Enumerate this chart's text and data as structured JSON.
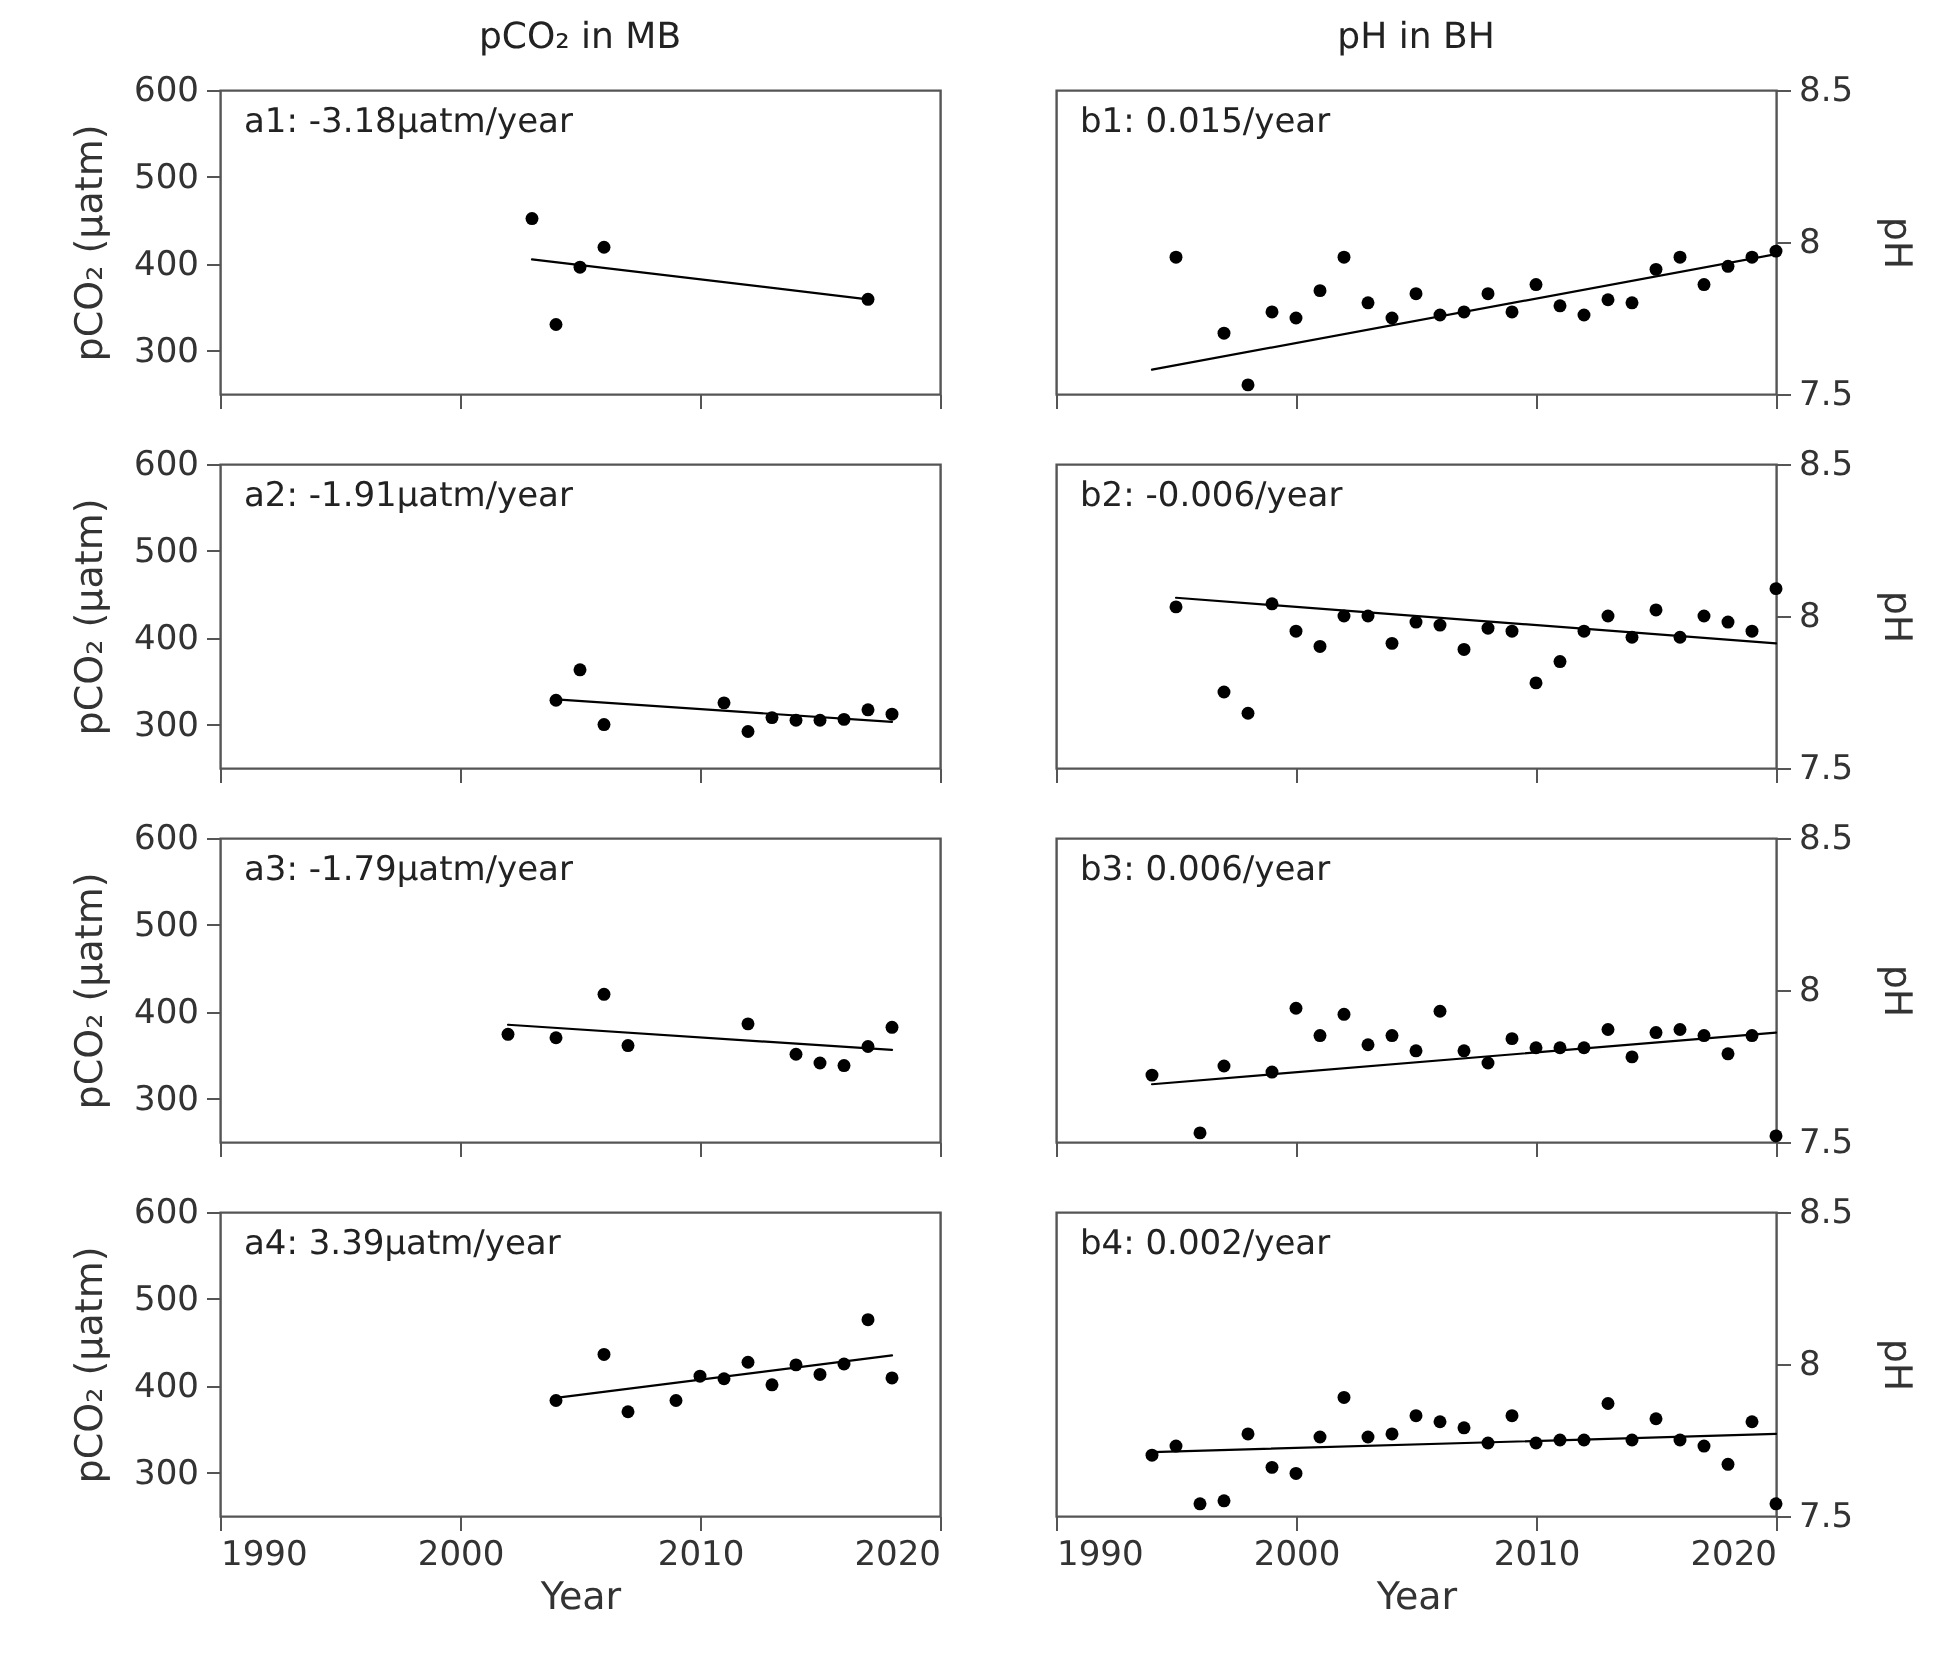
{
  "chart_data": [
    {
      "type": "scatter",
      "title": "pCO₂ in MB",
      "ylabel": "pCO₂ (μatm)",
      "xlim": [
        1990,
        2020
      ],
      "xticks": [
        1990,
        2000,
        2010,
        2020
      ],
      "ylim": [
        250,
        600
      ],
      "yticks": [
        300,
        400,
        500,
        600
      ],
      "tick_labels": "y",
      "annotations": [
        "a1: -3.18μatm/year"
      ],
      "series": [
        {
          "marker": "circle",
          "color": "#000000",
          "x": [
            2003,
            2004,
            2005,
            2006,
            2017
          ],
          "values": [
            452,
            330,
            396,
            419,
            359
          ]
        },
        {
          "type": "line",
          "color": "#000000",
          "x": [
            2003,
            2017
          ],
          "values": [
            405,
            359
          ]
        }
      ]
    },
    {
      "type": "scatter",
      "title": "pH in BH",
      "y2label": "pH",
      "xlim": [
        1990,
        2020
      ],
      "xticks": [
        1990,
        2000,
        2010,
        2020
      ],
      "y2lim": [
        7.5,
        8.5
      ],
      "y2ticks": [
        7.5,
        8,
        8.5
      ],
      "tick_labels": "y",
      "annotations": [
        "b1: 0.015/year"
      ],
      "series": [
        {
          "marker": "circle",
          "axis": "y2",
          "color": "#000000",
          "x": [
            1995,
            1997,
            1998,
            1999,
            2000,
            2001,
            2002,
            2003,
            2004,
            2005,
            2006,
            2007,
            2008,
            2009,
            2010,
            2011,
            2012,
            2013,
            2014,
            2015,
            2016,
            2017,
            2018,
            2019,
            2020
          ],
          "values": [
            7.95,
            7.7,
            7.53,
            7.77,
            7.75,
            7.84,
            7.95,
            7.8,
            7.75,
            7.83,
            7.76,
            7.77,
            7.83,
            7.77,
            7.86,
            7.79,
            7.76,
            7.81,
            7.8,
            7.91,
            7.95,
            7.86,
            7.92,
            7.95,
            7.97
          ]
        },
        {
          "type": "line",
          "axis": "y2",
          "color": "#000000",
          "x": [
            1994,
            2020
          ],
          "values": [
            7.58,
            7.96
          ]
        }
      ]
    },
    {
      "type": "scatter",
      "ylabel": "pCO₂ (μatm)",
      "xlim": [
        1990,
        2020
      ],
      "xticks": [
        1990,
        2000,
        2010,
        2020
      ],
      "ylim": [
        250,
        600
      ],
      "yticks": [
        300,
        400,
        500,
        600
      ],
      "tick_labels": "y",
      "annotations": [
        "a2: -1.91μatm/year"
      ],
      "series": [
        {
          "marker": "circle",
          "color": "#000000",
          "x": [
            2004,
            2005,
            2006,
            2011,
            2012,
            2013,
            2014,
            2015,
            2016,
            2017,
            2018
          ],
          "values": [
            328,
            363,
            300,
            325,
            292,
            308,
            305,
            305,
            306,
            317,
            312
          ]
        },
        {
          "type": "line",
          "color": "#000000",
          "x": [
            2004,
            2018
          ],
          "values": [
            329,
            303
          ]
        }
      ]
    },
    {
      "type": "scatter",
      "y2label": "pH",
      "xlim": [
        1990,
        2020
      ],
      "xticks": [
        1990,
        2000,
        2010,
        2020
      ],
      "y2lim": [
        7.5,
        8.5
      ],
      "y2ticks": [
        7.5,
        8,
        8.5
      ],
      "tick_labels": "y",
      "annotations": [
        "b2: -0.006/year"
      ],
      "series": [
        {
          "marker": "circle",
          "axis": "y2",
          "color": "#000000",
          "x": [
            1995,
            1997,
            1998,
            1999,
            2000,
            2001,
            2002,
            2003,
            2004,
            2005,
            2006,
            2007,
            2008,
            2009,
            2010,
            2011,
            2012,
            2013,
            2014,
            2015,
            2016,
            2017,
            2018,
            2019,
            2020
          ],
          "values": [
            8.03,
            7.75,
            7.68,
            8.04,
            7.95,
            7.9,
            8.0,
            8.0,
            7.91,
            7.98,
            7.97,
            7.89,
            7.96,
            7.95,
            7.78,
            7.85,
            7.95,
            8.0,
            7.93,
            8.02,
            7.93,
            8.0,
            7.98,
            7.95,
            8.09
          ]
        },
        {
          "type": "line",
          "axis": "y2",
          "color": "#000000",
          "x": [
            1995,
            2020
          ],
          "values": [
            8.06,
            7.91
          ]
        }
      ]
    },
    {
      "type": "scatter",
      "ylabel": "pCO₂ (μatm)",
      "xlim": [
        1990,
        2020
      ],
      "xticks": [
        1990,
        2000,
        2010,
        2020
      ],
      "ylim": [
        250,
        600
      ],
      "yticks": [
        300,
        400,
        500,
        600
      ],
      "tick_labels": "y",
      "annotations": [
        "a3: -1.79μatm/year"
      ],
      "series": [
        {
          "marker": "circle",
          "color": "#000000",
          "x": [
            2002,
            2004,
            2006,
            2007,
            2012,
            2014,
            2015,
            2016,
            2017,
            2018
          ],
          "values": [
            374,
            370,
            420,
            361,
            386,
            351,
            341,
            338,
            360,
            382
          ]
        },
        {
          "type": "line",
          "color": "#000000",
          "x": [
            2002,
            2018
          ],
          "values": [
            385,
            356
          ]
        }
      ]
    },
    {
      "type": "scatter",
      "y2label": "pH",
      "xlim": [
        1990,
        2020
      ],
      "xticks": [
        1990,
        2000,
        2010,
        2020
      ],
      "y2lim": [
        7.5,
        8.5
      ],
      "y2ticks": [
        7.5,
        8,
        8.5
      ],
      "tick_labels": "y",
      "annotations": [
        "b3: 0.006/year"
      ],
      "series": [
        {
          "marker": "circle",
          "axis": "y2",
          "color": "#000000",
          "x": [
            1994,
            1996,
            1997,
            1999,
            2000,
            2001,
            2002,
            2003,
            2004,
            2005,
            2006,
            2007,
            2008,
            2009,
            2010,
            2011,
            2012,
            2013,
            2014,
            2015,
            2016,
            2017,
            2018,
            2019,
            2020
          ],
          "values": [
            7.72,
            7.53,
            7.75,
            7.73,
            7.94,
            7.85,
            7.92,
            7.82,
            7.85,
            7.8,
            7.93,
            7.8,
            7.76,
            7.84,
            7.81,
            7.81,
            7.81,
            7.87,
            7.78,
            7.86,
            7.87,
            7.85,
            7.79,
            7.85,
            7.52
          ]
        },
        {
          "type": "line",
          "axis": "y2",
          "color": "#000000",
          "x": [
            1994,
            2020
          ],
          "values": [
            7.69,
            7.86
          ]
        }
      ]
    },
    {
      "type": "scatter",
      "ylabel": "pCO₂ (μatm)",
      "xlabel": "Year",
      "xlim": [
        1990,
        2020
      ],
      "xticks": [
        1990,
        2000,
        2010,
        2020
      ],
      "ylim": [
        250,
        600
      ],
      "yticks": [
        300,
        400,
        500,
        600
      ],
      "annotations": [
        "a4: 3.39μatm/year"
      ],
      "series": [
        {
          "marker": "circle",
          "color": "#000000",
          "x": [
            2004,
            2006,
            2007,
            2009,
            2010,
            2011,
            2012,
            2013,
            2014,
            2015,
            2016,
            2017,
            2018
          ],
          "values": [
            383,
            436,
            370,
            383,
            411,
            408,
            427,
            401,
            424,
            413,
            425,
            476,
            409
          ]
        },
        {
          "type": "line",
          "color": "#000000",
          "x": [
            2004,
            2018
          ],
          "values": [
            386,
            435
          ]
        }
      ]
    },
    {
      "type": "scatter",
      "y2label": "pH",
      "xlabel": "Year",
      "xlim": [
        1990,
        2020
      ],
      "xticks": [
        1990,
        2000,
        2010,
        2020
      ],
      "y2lim": [
        7.5,
        8.5
      ],
      "y2ticks": [
        7.5,
        8,
        8.5
      ],
      "annotations": [
        "b4: 0.002/year"
      ],
      "series": [
        {
          "marker": "circle",
          "axis": "y2",
          "color": "#000000",
          "x": [
            1994,
            1995,
            1996,
            1997,
            1998,
            1999,
            2000,
            2001,
            2002,
            2003,
            2004,
            2005,
            2006,
            2007,
            2008,
            2009,
            2010,
            2011,
            2012,
            2013,
            2014,
            2015,
            2016,
            2017,
            2018,
            2019,
            2020
          ],
          "values": [
            7.7,
            7.73,
            7.54,
            7.55,
            7.77,
            7.66,
            7.64,
            7.76,
            7.89,
            7.76,
            7.77,
            7.83,
            7.81,
            7.79,
            7.74,
            7.83,
            7.74,
            7.75,
            7.75,
            7.87,
            7.75,
            7.82,
            7.75,
            7.73,
            7.67,
            7.81,
            7.54
          ]
        },
        {
          "type": "line",
          "axis": "y2",
          "color": "#000000",
          "x": [
            1994,
            2020
          ],
          "values": [
            7.71,
            7.77
          ]
        }
      ]
    }
  ]
}
